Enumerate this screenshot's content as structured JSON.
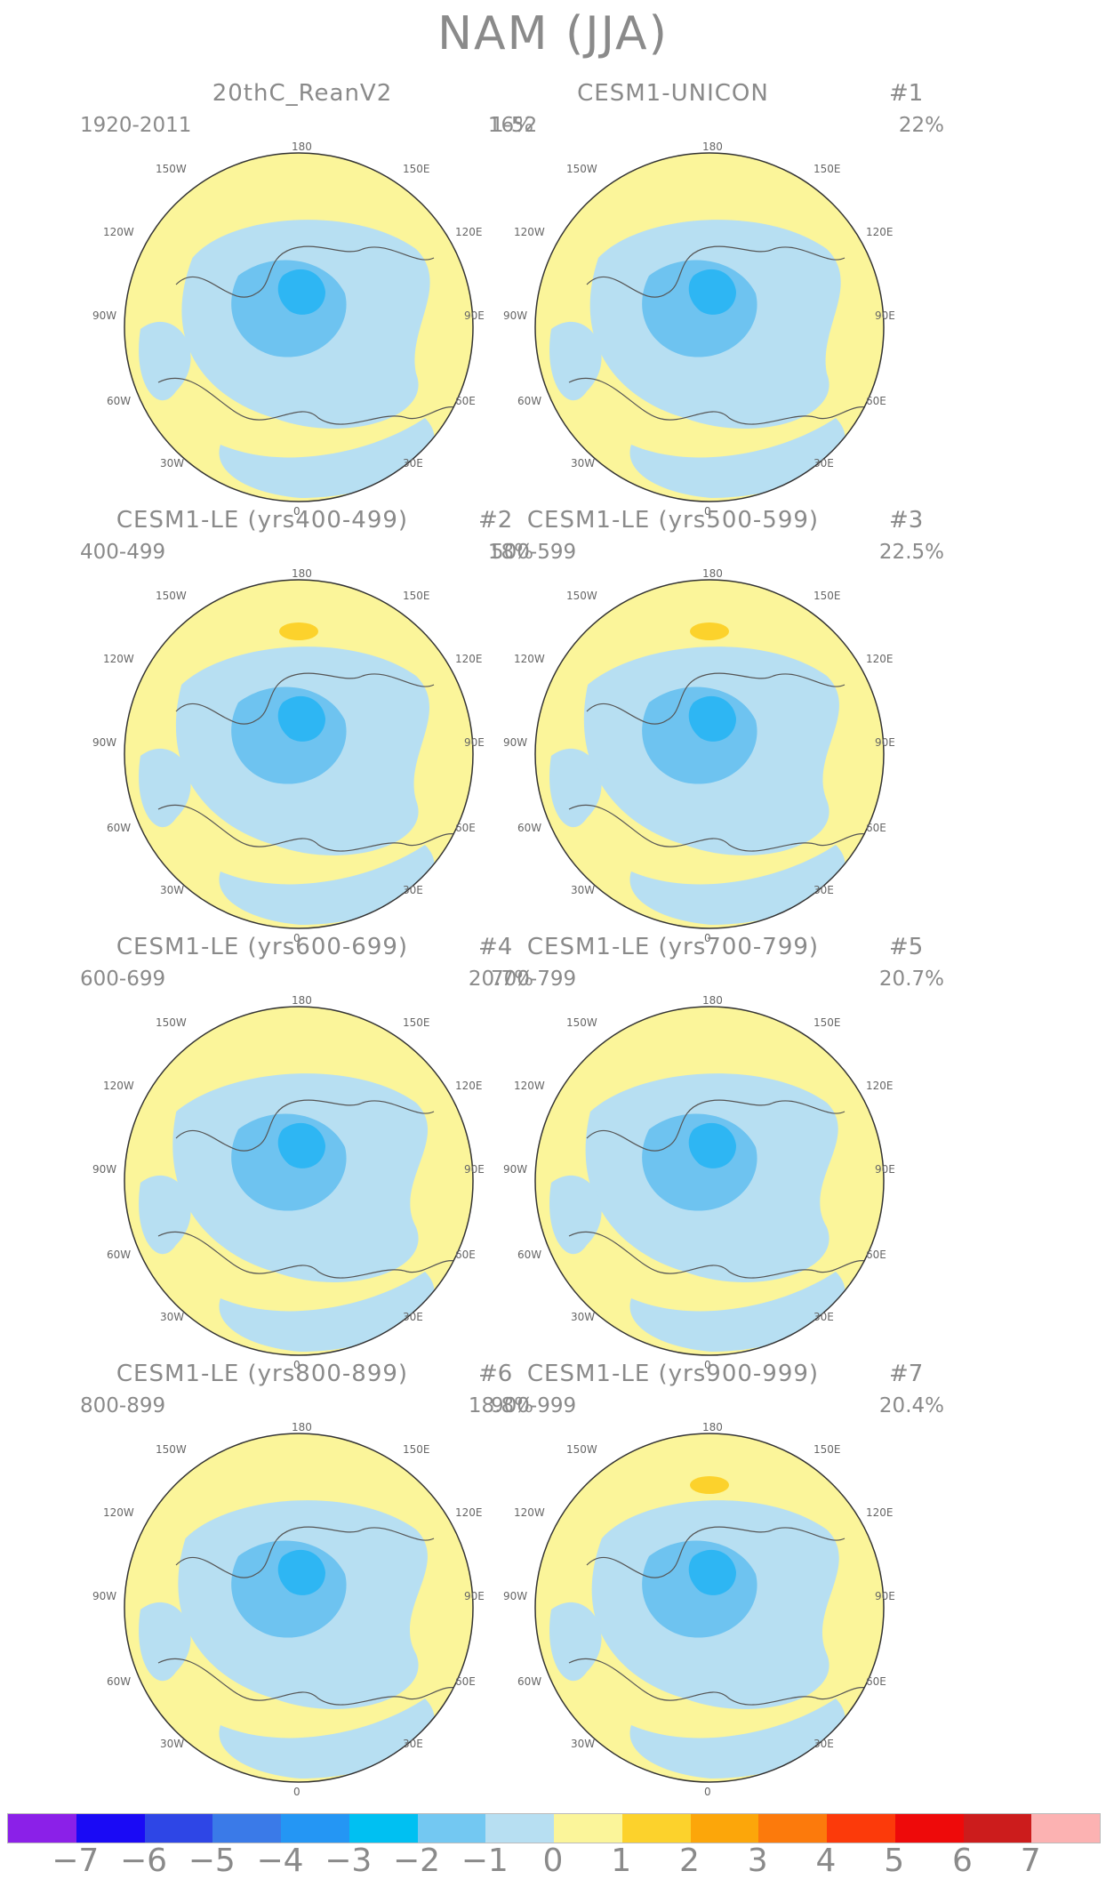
{
  "title": "NAM (JJA)",
  "colors": {
    "yellow": "#fbf59a",
    "lightblue": "#b7dff2",
    "blue2": "#6ec3f0",
    "blue3": "#2eb6f3",
    "orange1": "#fcd22c"
  },
  "panels": [
    {
      "title": "20thC_ReanV2",
      "number": "",
      "years": "1920-2011",
      "percent": "16%"
    },
    {
      "title": "CESM1-UNICON",
      "number": "#1",
      "years": "1-52",
      "percent": "22%"
    },
    {
      "title": "CESM1-LE (yrs400-499)",
      "number": "#2",
      "years": "400-499",
      "percent": "18%"
    },
    {
      "title": "CESM1-LE (yrs500-599)",
      "number": "#3",
      "years": "500-599",
      "percent": "22.5%"
    },
    {
      "title": "CESM1-LE (yrs600-699)",
      "number": "#4",
      "years": "600-699",
      "percent": "20.7%"
    },
    {
      "title": "CESM1-LE (yrs700-799)",
      "number": "#5",
      "years": "700-799",
      "percent": "20.7%"
    },
    {
      "title": "CESM1-LE (yrs800-899)",
      "number": "#6",
      "years": "800-899",
      "percent": "18.8%"
    },
    {
      "title": "CESM1-LE (yrs900-999)",
      "number": "#7",
      "years": "900-999",
      "percent": "20.4%"
    }
  ],
  "lon_labels": {
    "top": "180",
    "bottom": "0",
    "l150": "150W",
    "l120": "120W",
    "l90": "90W",
    "l60": "60W",
    "l30": "30W",
    "r150": "150E",
    "r120": "120E",
    "r90": "90E",
    "r60": "60E",
    "r30": "30E"
  },
  "colorbar": {
    "colors": [
      "#8b20e8",
      "#1a0af5",
      "#2e46e6",
      "#3a7ae8",
      "#2496f4",
      "#00c0f2",
      "#73c8f2",
      "#b7dff2",
      "#fbf59a",
      "#fcd22c",
      "#fca60a",
      "#fc7a0c",
      "#fc3a0a",
      "#ee0a0a",
      "#cc1c1c",
      "#fcb2b2"
    ],
    "tick_labels": [
      "−7",
      "−6",
      "−5",
      "−4",
      "−3",
      "−2",
      "−1",
      "0",
      "1",
      "2",
      "3",
      "4",
      "5",
      "6",
      "7"
    ]
  }
}
